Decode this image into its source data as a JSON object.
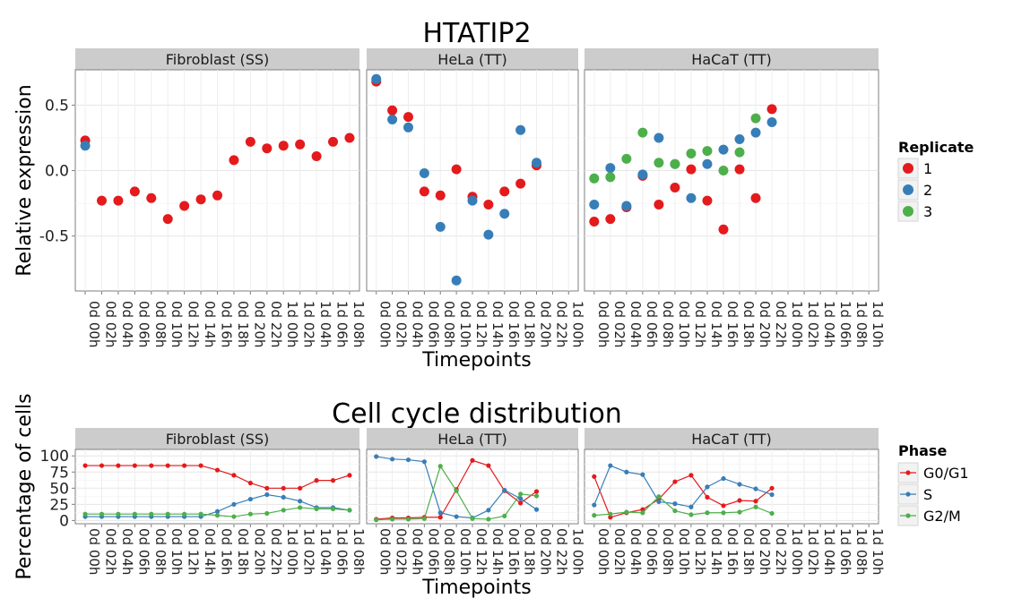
{
  "chart_data": [
    {
      "type": "scatter",
      "title": "HTATIP2",
      "xlabel": "Timepoints",
      "ylabel": "Relative expression",
      "ylim": [
        -0.92,
        0.77
      ],
      "yticks": [
        0.5,
        0.0,
        -0.5
      ],
      "ytick_labels": [
        "0.5",
        "0.0",
        "-0.5"
      ],
      "grid": true,
      "legend": {
        "title": "Replicate",
        "position": "right",
        "entries": [
          {
            "label": "1",
            "color": "#E41A1C"
          },
          {
            "label": "2",
            "color": "#377EB8"
          },
          {
            "label": "3",
            "color": "#4DAF4A"
          }
        ]
      },
      "panels": [
        {
          "name": "Fibroblast (SS)",
          "x_labels": [
            "0d 00h",
            "0d 02h",
            "0d 04h",
            "0d 06h",
            "0d 08h",
            "0d 10h",
            "0d 12h",
            "0d 14h",
            "0d 16h",
            "0d 18h",
            "0d 20h",
            "0d 22h",
            "1d 00h",
            "1d 02h",
            "1d 04h",
            "1d 06h",
            "1d 08h"
          ],
          "series": [
            {
              "name": "1",
              "values": [
                0.23,
                -0.23,
                -0.23,
                -0.16,
                -0.21,
                -0.37,
                -0.27,
                -0.22,
                -0.19,
                0.08,
                0.22,
                0.17,
                0.19,
                0.2,
                0.11,
                0.22,
                0.25
              ]
            },
            {
              "name": "2",
              "values": [
                0.19,
                null,
                null,
                null,
                null,
                null,
                null,
                null,
                null,
                null,
                null,
                null,
                null,
                null,
                null,
                null,
                null
              ]
            }
          ]
        },
        {
          "name": "HeLa (TT)",
          "x_labels": [
            "0d 00h",
            "0d 02h",
            "0d 04h",
            "0d 06h",
            "0d 08h",
            "0d 10h",
            "0d 12h",
            "0d 14h",
            "0d 16h",
            "0d 18h",
            "0d 20h",
            "0d 22h",
            "1d 00h"
          ],
          "x_positions": [
            0,
            0.5,
            1,
            1.5,
            2,
            3,
            4,
            5,
            6,
            7,
            8,
            9,
            10,
            11,
            12
          ],
          "series": [
            {
              "name": "1",
              "values": [
                0.68,
                0.46,
                0.41,
                -0.16,
                -0.19,
                0.01,
                -0.2,
                -0.26,
                -0.16,
                -0.1,
                0.04,
                null,
                null,
                null,
                null
              ]
            },
            {
              "name": "2",
              "values": [
                0.7,
                0.39,
                0.33,
                -0.02,
                -0.43,
                -0.84,
                -0.23,
                -0.49,
                -0.33,
                0.31,
                0.06,
                null,
                null,
                null,
                null
              ]
            }
          ]
        },
        {
          "name": "HaCaT (TT)",
          "x_labels": [
            "0d 00h",
            "0d 02h",
            "0d 04h",
            "0d 06h",
            "0d 08h",
            "0d 10h",
            "0d 12h",
            "0d 14h",
            "0d 16h",
            "0d 18h",
            "0d 20h",
            "0d 22h",
            "1d 00h",
            "1d 02h",
            "1d 04h",
            "1d 06h",
            "1d 08h",
            "1d 10h"
          ],
          "series": [
            {
              "name": "1",
              "values": [
                -0.39,
                -0.37,
                -0.28,
                -0.04,
                -0.26,
                -0.13,
                0.01,
                -0.23,
                -0.45,
                0.01,
                -0.21,
                0.47
              ]
            },
            {
              "name": "2",
              "values": [
                -0.26,
                0.02,
                -0.27,
                -0.03,
                0.25,
                0.05,
                -0.21,
                0.05,
                0.16,
                0.24,
                0.29,
                0.37
              ]
            },
            {
              "name": "3",
              "values": [
                -0.06,
                -0.05,
                0.09,
                0.29,
                0.06,
                0.05,
                0.13,
                0.15,
                0.0,
                0.14,
                0.4
              ]
            }
          ]
        }
      ]
    },
    {
      "type": "line",
      "title": "Cell cycle distribution",
      "xlabel": "Timepoints",
      "ylabel": "Percentage of cells",
      "ylim": [
        -5,
        110
      ],
      "yticks": [
        0,
        25,
        50,
        75,
        100
      ],
      "ytick_labels": [
        "0",
        "25",
        "50",
        "75",
        "100"
      ],
      "grid": true,
      "legend": {
        "title": "Phase",
        "position": "right",
        "entries": [
          {
            "label": "G0/G1",
            "color": "#E41A1C"
          },
          {
            "label": "S",
            "color": "#377EB8"
          },
          {
            "label": "G2/M",
            "color": "#4DAF4A"
          }
        ]
      },
      "panels": [
        {
          "name": "Fibroblast (SS)",
          "x_labels": [
            "0d 00h",
            "0d 02h",
            "0d 04h",
            "0d 06h",
            "0d 08h",
            "0d 10h",
            "0d 12h",
            "0d 14h",
            "0d 16h",
            "0d 18h",
            "0d 20h",
            "0d 22h",
            "1d 00h",
            "1d 02h",
            "1d 04h",
            "1d 06h",
            "1d 08h"
          ],
          "series": [
            {
              "name": "G0/G1",
              "values": [
                85,
                85,
                85,
                85,
                85,
                85,
                85,
                85,
                78,
                70,
                58,
                50,
                50,
                50,
                62,
                62,
                70
              ]
            },
            {
              "name": "S",
              "values": [
                6,
                6,
                6,
                6,
                6,
                6,
                6,
                6,
                14,
                25,
                33,
                40,
                36,
                30,
                20,
                20,
                16
              ]
            },
            {
              "name": "G2/M",
              "values": [
                10,
                10,
                10,
                10,
                10,
                10,
                10,
                10,
                8,
                6,
                10,
                11,
                16,
                20,
                18,
                18,
                16
              ]
            }
          ]
        },
        {
          "name": "HeLa (TT)",
          "x_labels": [
            "0d 00h",
            "0d 02h",
            "0d 04h",
            "0d 06h",
            "0d 08h",
            "0d 10h",
            "0d 12h",
            "0d 14h",
            "0d 16h",
            "0d 18h",
            "0d 20h",
            "0d 22h",
            "1d 00h"
          ],
          "series": [
            {
              "name": "G0/G1",
              "values": [
                2,
                4,
                4,
                5,
                5,
                48,
                93,
                85,
                46,
                27,
                45
              ]
            },
            {
              "name": "S",
              "values": [
                99,
                95,
                94,
                91,
                12,
                6,
                4,
                16,
                47,
                34,
                17
              ]
            },
            {
              "name": "G2/M",
              "values": [
                1,
                2,
                2,
                3,
                84,
                46,
                3,
                2,
                7,
                41,
                38
              ]
            }
          ]
        },
        {
          "name": "HaCaT (TT)",
          "x_labels": [
            "0d 00h",
            "0d 02h",
            "0d 04h",
            "0d 06h",
            "0d 08h",
            "0d 10h",
            "0d 12h",
            "0d 14h",
            "0d 16h",
            "0d 18h",
            "0d 20h",
            "0d 22h",
            "1d 00h",
            "1d 02h",
            "1d 04h",
            "1d 06h",
            "1d 08h",
            "1d 10h"
          ],
          "series": [
            {
              "name": "G0/G1",
              "values": [
                68,
                5,
                12,
                17,
                33,
                60,
                70,
                36,
                23,
                31,
                30,
                50
              ]
            },
            {
              "name": "S",
              "values": [
                24,
                85,
                75,
                71,
                29,
                26,
                21,
                52,
                65,
                56,
                49,
                40
              ]
            },
            {
              "name": "G2/M",
              "values": [
                8,
                10,
                13,
                12,
                37,
                15,
                9,
                12,
                12,
                13,
                21,
                11
              ]
            }
          ]
        }
      ]
    }
  ]
}
